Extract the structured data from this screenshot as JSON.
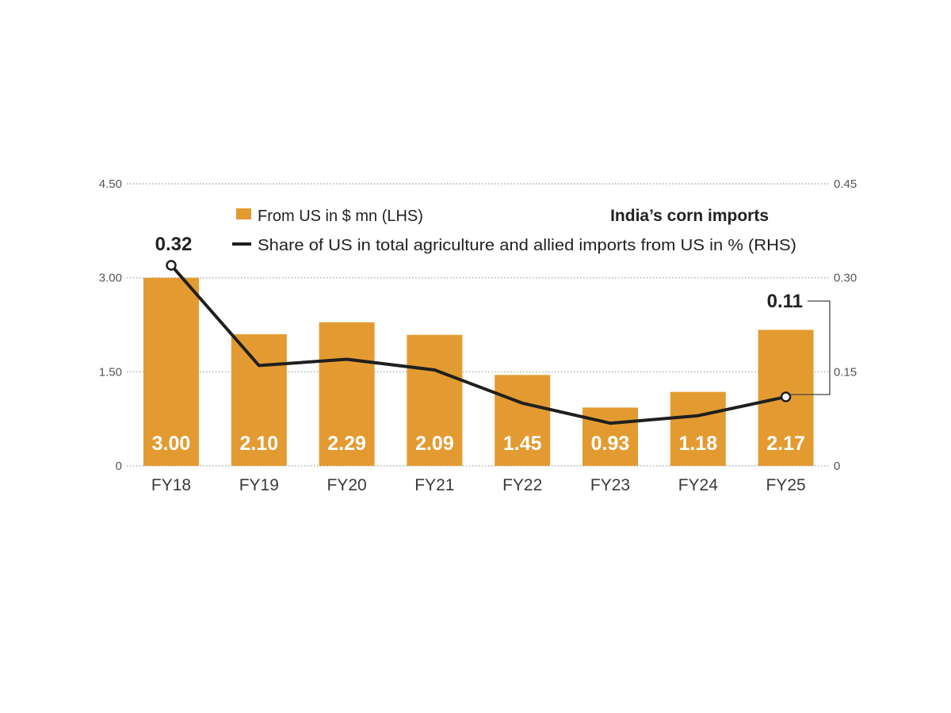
{
  "chart_data": {
    "type": "bar",
    "title": "India’s corn imports",
    "categories": [
      "FY18",
      "FY19",
      "FY20",
      "FY21",
      "FY22",
      "FY23",
      "FY24",
      "FY25"
    ],
    "series": [
      {
        "name": "From US in $ mn (LHS)",
        "type": "bar",
        "axis": "left",
        "values": [
          3.0,
          2.1,
          2.29,
          2.09,
          1.45,
          0.93,
          1.18,
          2.17
        ],
        "value_labels": [
          "3.00",
          "2.10",
          "2.29",
          "2.09",
          "1.45",
          "0.93",
          "1.18",
          "2.17"
        ]
      },
      {
        "name": "Share of US in total agriculture and allied imports from US in % (RHS)",
        "type": "line",
        "axis": "right",
        "values": [
          0.32,
          0.16,
          0.17,
          0.153,
          0.1,
          0.068,
          0.08,
          0.11
        ]
      }
    ],
    "left_axis": {
      "ticks": [
        "0",
        "1.50",
        "3.00",
        "4.50"
      ],
      "range": [
        0,
        4.5
      ]
    },
    "right_axis": {
      "ticks": [
        "0",
        "0.15",
        "0.30",
        "0.45"
      ],
      "range": [
        0,
        0.45
      ]
    },
    "callouts": [
      {
        "category": "FY18",
        "label": "0.32"
      },
      {
        "category": "FY25",
        "label": "0.11"
      }
    ],
    "legend_position": "top",
    "grid": "dotted horizontal",
    "colors": {
      "bar": "#e39b31",
      "line": "#1f1f1f",
      "grid": "#9a9a9a"
    }
  }
}
